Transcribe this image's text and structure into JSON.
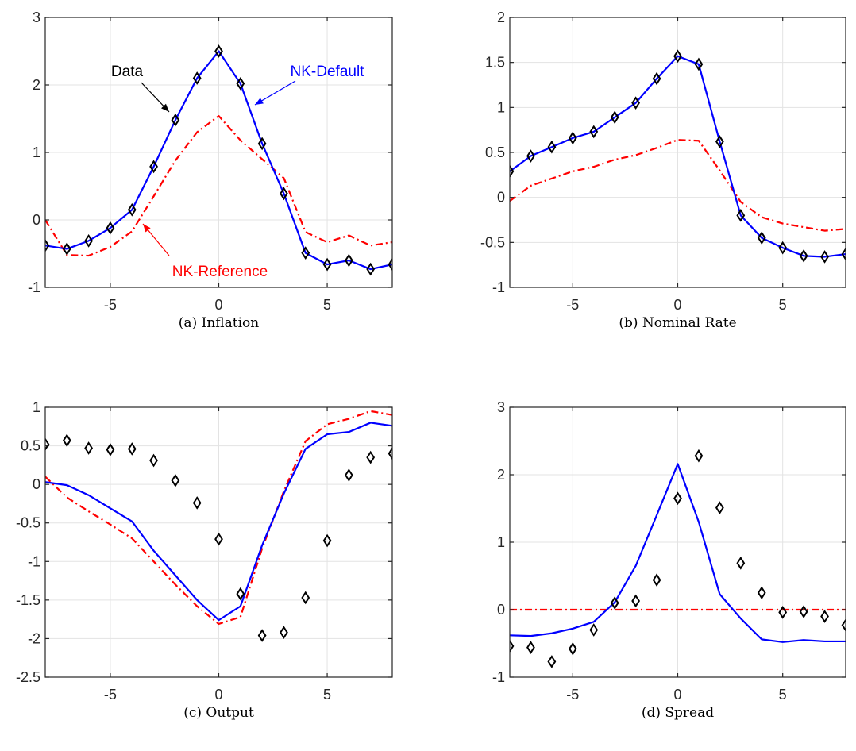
{
  "figure": {
    "colors": {
      "data_marker": "#000000",
      "nk_default": "#0000ff",
      "nk_reference": "#ff0000",
      "grid": "#e3e3e3",
      "axis": "#262626"
    }
  },
  "chart_data": [
    {
      "type": "line",
      "caption": "(a)  Inflation",
      "xlim": [
        -8,
        8
      ],
      "ylim": [
        -1,
        3
      ],
      "xticks": [
        -5,
        0,
        5
      ],
      "yticks": [
        -1,
        0,
        1,
        2,
        3
      ],
      "grid": true,
      "x": [
        -8,
        -7,
        -6,
        -5,
        -4,
        -3,
        -2,
        -1,
        0,
        1,
        2,
        3,
        4,
        5,
        6,
        7,
        8
      ],
      "series": [
        {
          "name": "Data",
          "style": "diamond-markers",
          "color": "#000000",
          "values": [
            -0.38,
            -0.43,
            -0.31,
            -0.12,
            0.15,
            0.79,
            1.48,
            2.1,
            2.5,
            2.02,
            1.13,
            0.39,
            -0.49,
            -0.66,
            -0.6,
            -0.73,
            -0.66
          ]
        },
        {
          "name": "NK-Default",
          "style": "solid",
          "color": "#0000ff",
          "values": [
            -0.38,
            -0.43,
            -0.31,
            -0.12,
            0.15,
            0.79,
            1.48,
            2.1,
            2.5,
            2.02,
            1.13,
            0.39,
            -0.49,
            -0.66,
            -0.6,
            -0.73,
            -0.66
          ]
        },
        {
          "name": "NK-Reference",
          "style": "dashdot",
          "color": "#ff0000",
          "values": [
            0.0,
            -0.52,
            -0.53,
            -0.4,
            -0.17,
            0.35,
            0.88,
            1.3,
            1.54,
            1.18,
            0.9,
            0.62,
            -0.18,
            -0.33,
            -0.23,
            -0.38,
            -0.33
          ]
        }
      ],
      "annotations": [
        {
          "text": "Data",
          "color": "#000000"
        },
        {
          "text": "NK-Default",
          "color": "#0000ff"
        },
        {
          "text": "NK-Reference",
          "color": "#ff0000"
        }
      ]
    },
    {
      "type": "line",
      "caption": "(b)  Nominal Rate",
      "xlim": [
        -8,
        8
      ],
      "ylim": [
        -1,
        2
      ],
      "xticks": [
        -5,
        0,
        5
      ],
      "yticks": [
        -1,
        -0.5,
        0,
        0.5,
        1,
        1.5,
        2
      ],
      "grid": true,
      "x": [
        -8,
        -7,
        -6,
        -5,
        -4,
        -3,
        -2,
        -1,
        0,
        1,
        2,
        3,
        4,
        5,
        6,
        7,
        8
      ],
      "series": [
        {
          "style": "diamond-markers",
          "color": "#000000",
          "values": [
            0.29,
            0.46,
            0.56,
            0.66,
            0.73,
            0.89,
            1.05,
            1.32,
            1.57,
            1.48,
            0.62,
            -0.2,
            -0.45,
            -0.56,
            -0.65,
            -0.66,
            -0.63
          ]
        },
        {
          "style": "solid",
          "color": "#0000ff",
          "values": [
            0.29,
            0.46,
            0.56,
            0.66,
            0.73,
            0.89,
            1.05,
            1.32,
            1.57,
            1.48,
            0.62,
            -0.2,
            -0.45,
            -0.56,
            -0.65,
            -0.66,
            -0.63
          ]
        },
        {
          "style": "dashdot",
          "color": "#ff0000",
          "values": [
            -0.04,
            0.13,
            0.21,
            0.29,
            0.34,
            0.42,
            0.47,
            0.55,
            0.64,
            0.63,
            0.3,
            -0.05,
            -0.22,
            -0.29,
            -0.33,
            -0.37,
            -0.35
          ]
        }
      ]
    },
    {
      "type": "line",
      "caption": "(c)  Output",
      "xlim": [
        -8,
        8
      ],
      "ylim": [
        -2.5,
        1
      ],
      "xticks": [
        -5,
        0,
        5
      ],
      "yticks": [
        -2.5,
        -2,
        -1.5,
        -1,
        -0.5,
        0,
        0.5,
        1
      ],
      "grid": true,
      "x": [
        -8,
        -7,
        -6,
        -5,
        -4,
        -3,
        -2,
        -1,
        0,
        1,
        2,
        3,
        4,
        5,
        6,
        7,
        8
      ],
      "series": [
        {
          "style": "diamond-markers",
          "color": "#000000",
          "values": [
            0.52,
            0.57,
            0.47,
            0.45,
            0.46,
            0.31,
            0.05,
            -0.24,
            -0.71,
            -1.42,
            -1.96,
            -1.92,
            -1.47,
            -0.73,
            0.12,
            0.35,
            0.4
          ]
        },
        {
          "style": "solid",
          "color": "#0000ff",
          "values": [
            0.03,
            -0.01,
            -0.14,
            -0.31,
            -0.48,
            -0.86,
            -1.18,
            -1.5,
            -1.76,
            -1.58,
            -0.79,
            -0.12,
            0.46,
            0.65,
            0.68,
            0.8,
            0.76
          ]
        },
        {
          "style": "dashdot",
          "color": "#ff0000",
          "values": [
            0.1,
            -0.17,
            -0.35,
            -0.52,
            -0.7,
            -1.0,
            -1.3,
            -1.58,
            -1.81,
            -1.72,
            -0.83,
            -0.09,
            0.56,
            0.78,
            0.85,
            0.95,
            0.9
          ]
        }
      ]
    },
    {
      "type": "line",
      "caption": "(d)  Spread",
      "xlim": [
        -8,
        8
      ],
      "ylim": [
        -1,
        3
      ],
      "xticks": [
        -5,
        0,
        5
      ],
      "yticks": [
        -1,
        0,
        1,
        2,
        3
      ],
      "grid": true,
      "x": [
        -8,
        -7,
        -6,
        -5,
        -4,
        -3,
        -2,
        -1,
        0,
        1,
        2,
        3,
        4,
        5,
        6,
        7,
        8
      ],
      "series": [
        {
          "style": "diamond-markers",
          "color": "#000000",
          "values": [
            -0.54,
            -0.56,
            -0.77,
            -0.58,
            -0.3,
            0.1,
            0.13,
            0.44,
            1.65,
            2.28,
            1.51,
            0.69,
            0.25,
            -0.04,
            -0.03,
            -0.1,
            -0.23
          ]
        },
        {
          "style": "solid",
          "color": "#0000ff",
          "values": [
            -0.38,
            -0.39,
            -0.35,
            -0.28,
            -0.18,
            0.11,
            0.65,
            1.4,
            2.16,
            1.3,
            0.23,
            -0.13,
            -0.44,
            -0.48,
            -0.45,
            -0.47,
            -0.47
          ]
        },
        {
          "style": "dashdot",
          "color": "#ff0000",
          "values": [
            0,
            0,
            0,
            0,
            0,
            0,
            0,
            0,
            0,
            0,
            0,
            0,
            0,
            0,
            0,
            0,
            0
          ]
        }
      ]
    }
  ]
}
